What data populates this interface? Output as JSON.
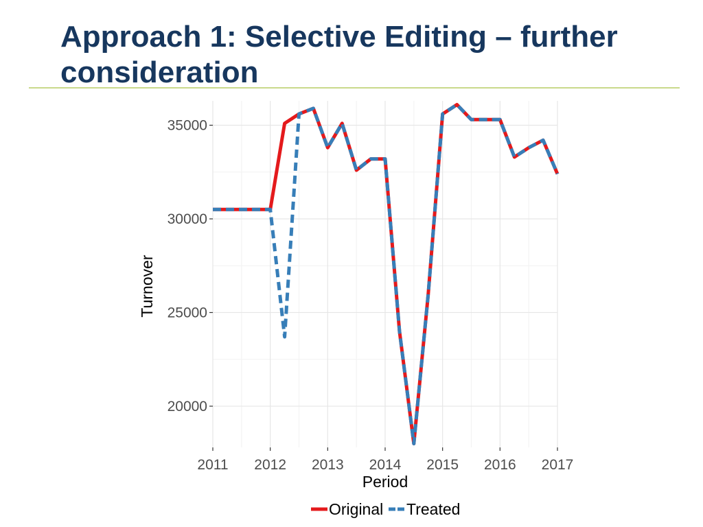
{
  "slide": {
    "title": "Approach 1: Selective Editing – further consideration",
    "accent_color": "#17375e",
    "rule_color": "#c9d98a"
  },
  "chart_data": {
    "type": "line",
    "title": "",
    "xlabel": "Period",
    "ylabel": "Turnover",
    "xlim": [
      2011,
      2017
    ],
    "ylim": [
      17800,
      36300
    ],
    "x_ticks": [
      2011,
      2012,
      2013,
      2014,
      2015,
      2016,
      2017
    ],
    "x_tick_labels": [
      "2011",
      "2012",
      "2013",
      "2014",
      "2015",
      "2016",
      "2017"
    ],
    "y_ticks": [
      20000,
      25000,
      30000,
      35000
    ],
    "y_tick_labels": [
      "20000",
      "25000",
      "30000",
      "35000"
    ],
    "grid": true,
    "legend_position": "bottom",
    "series": [
      {
        "name": "Original",
        "color": "#e41a1c",
        "dash": "solid",
        "x": [
          2011,
          2011.25,
          2011.5,
          2011.75,
          2012,
          2012.25,
          2012.5,
          2012.75,
          2013,
          2013.25,
          2013.5,
          2013.75,
          2014,
          2014.25,
          2014.5,
          2014.75,
          2015,
          2015.25,
          2015.5,
          2015.75,
          2016,
          2016.25,
          2016.5,
          2016.75,
          2017
        ],
        "values": [
          30500,
          30500,
          30500,
          30500,
          30500,
          35100,
          35600,
          35900,
          33800,
          35100,
          32600,
          33200,
          33200,
          24000,
          18000,
          26000,
          35600,
          36100,
          35300,
          35300,
          35300,
          33300,
          33800,
          34200,
          32400
        ]
      },
      {
        "name": "Treated",
        "color": "#377eb8",
        "dash": "dashed",
        "x": [
          2011,
          2011.25,
          2011.5,
          2011.75,
          2012,
          2012.25,
          2012.5,
          2012.75,
          2013,
          2013.25,
          2013.5,
          2013.75,
          2014,
          2014.25,
          2014.5,
          2014.75,
          2015,
          2015.25,
          2015.5,
          2015.75,
          2016,
          2016.25,
          2016.5,
          2016.75,
          2017
        ],
        "values": [
          30500,
          30500,
          30500,
          30500,
          30500,
          23700,
          35600,
          35900,
          33800,
          35100,
          32600,
          33200,
          33200,
          24000,
          18000,
          26000,
          35600,
          36100,
          35300,
          35300,
          35300,
          33300,
          33800,
          34200,
          32400
        ]
      }
    ]
  }
}
